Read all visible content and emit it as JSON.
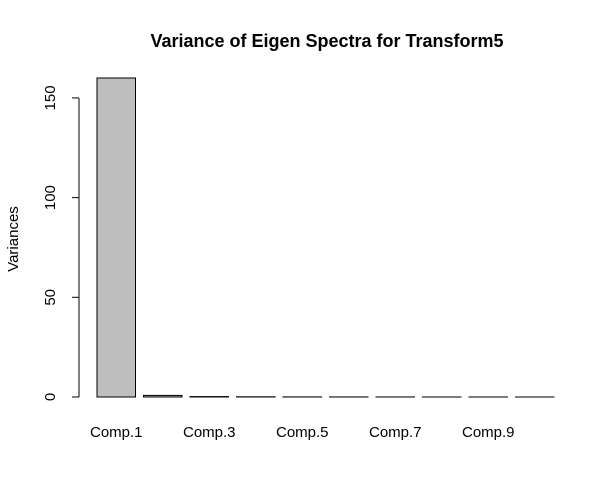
{
  "chart_data": {
    "type": "bar",
    "title": "Variance of Eigen Spectra for Transform5",
    "ylabel": "Variances",
    "xlabel": "",
    "categories": [
      "Comp.1",
      "Comp.2",
      "Comp.3",
      "Comp.4",
      "Comp.5",
      "Comp.6",
      "Comp.7",
      "Comp.8",
      "Comp.9",
      "Comp.10"
    ],
    "x_tick_labels_shown": [
      "Comp.1",
      "",
      "Comp.3",
      "",
      "Comp.5",
      "",
      "Comp.7",
      "",
      "Comp.9",
      ""
    ],
    "values": [
      160,
      0.8,
      0.2,
      0.1,
      0.05,
      0.03,
      0.02,
      0.01,
      0.01,
      0.005
    ],
    "ylim": [
      0,
      160
    ],
    "yticks": [
      0,
      50,
      100,
      150
    ],
    "bar_color": "#bebebe",
    "grid": false
  }
}
